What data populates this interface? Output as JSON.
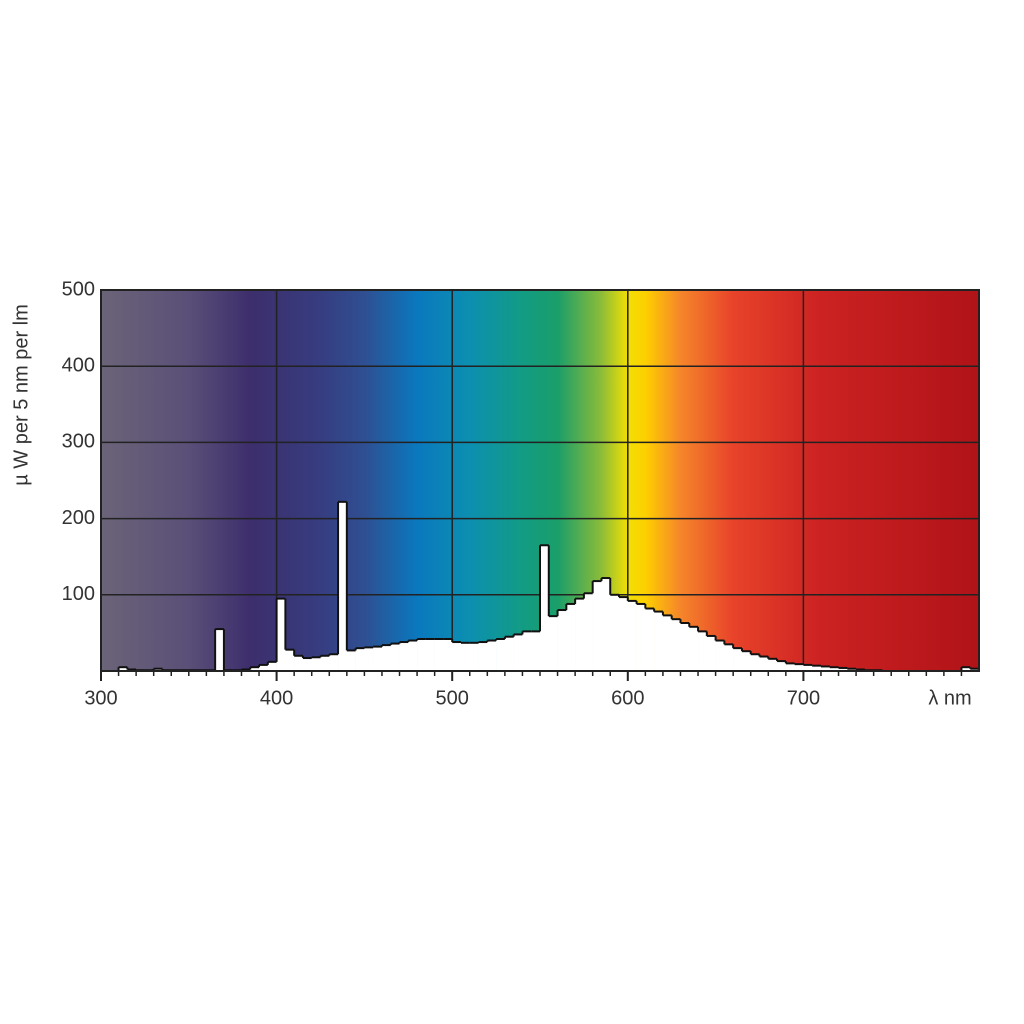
{
  "chart_data": {
    "type": "histogram",
    "y_label": "µ W per 5 nm per lm",
    "x_label": "λ nm",
    "bins": [
      300,
      305,
      310,
      315,
      320,
      325,
      330,
      335,
      340,
      345,
      350,
      355,
      360,
      365,
      370,
      375,
      380,
      385,
      390,
      395,
      400,
      405,
      410,
      415,
      420,
      425,
      430,
      435,
      440,
      445,
      450,
      455,
      460,
      465,
      470,
      475,
      480,
      485,
      490,
      495,
      500,
      505,
      510,
      515,
      520,
      525,
      530,
      535,
      540,
      545,
      550,
      555,
      560,
      565,
      570,
      575,
      580,
      585,
      590,
      595,
      600,
      605,
      610,
      615,
      620,
      625,
      630,
      635,
      640,
      645,
      650,
      655,
      660,
      665,
      670,
      675,
      680,
      685,
      690,
      695,
      700,
      705,
      710,
      715,
      720,
      725,
      730,
      735,
      740,
      745,
      750,
      755,
      760,
      765,
      770,
      775,
      780,
      785,
      790,
      795,
      800
    ],
    "values": [
      0,
      0,
      5,
      2,
      1,
      1,
      3,
      1,
      1,
      1,
      1,
      1,
      1,
      55,
      1,
      1,
      2,
      5,
      8,
      12,
      95,
      28,
      20,
      17,
      18,
      20,
      22,
      222,
      27,
      30,
      31,
      32,
      34,
      36,
      38,
      40,
      42,
      42,
      42,
      42,
      38,
      37,
      37,
      38,
      40,
      42,
      45,
      48,
      52,
      52,
      165,
      72,
      80,
      88,
      95,
      102,
      118,
      122,
      100,
      97,
      92,
      88,
      82,
      78,
      73,
      68,
      63,
      58,
      52,
      46,
      40,
      35,
      30,
      26,
      22,
      19,
      16,
      13,
      10,
      9,
      8,
      7,
      6,
      5,
      4,
      3,
      2,
      1,
      1,
      0,
      0,
      0,
      0,
      0,
      0,
      0,
      0,
      0,
      5,
      3
    ],
    "color": "#ffffff",
    "xlim": [
      300,
      800
    ],
    "xticks": [
      300,
      400,
      500,
      600,
      700
    ],
    "ylim": [
      0,
      500
    ],
    "yticks": [
      100,
      200,
      300,
      400,
      500
    ],
    "grid": true
  }
}
